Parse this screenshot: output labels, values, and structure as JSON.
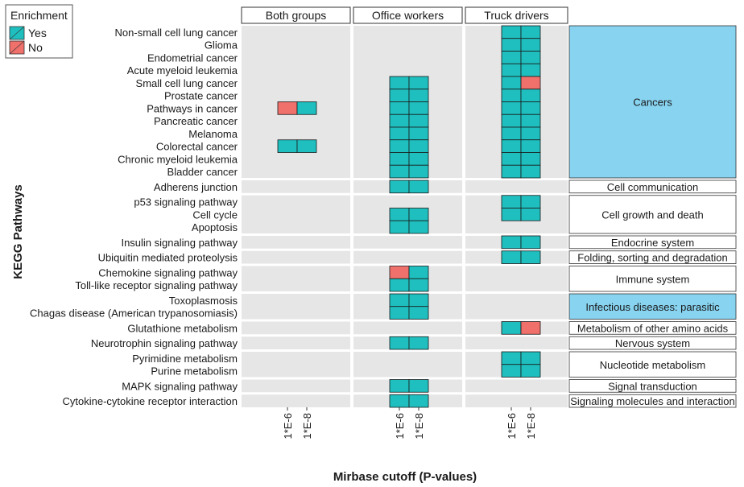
{
  "chart_data": {
    "type": "heatmap",
    "title": "",
    "ylabel": "KEGG Pathways",
    "xlabel": "Mirbase cutoff (P-values)",
    "legend": {
      "title": "Enrichment",
      "placement": "top-left",
      "entries": [
        {
          "label": "Yes",
          "color": "#1fbfbf"
        },
        {
          "label": "No",
          "color": "#f0706b"
        }
      ]
    },
    "panels": [
      "Both groups",
      "Office workers",
      "Truck drivers"
    ],
    "cutoffs": [
      "1*E-6",
      "1*E-8"
    ],
    "pathways": [
      "Non-small cell lung cancer",
      "Glioma",
      "Endometrial cancer",
      "Acute myeloid leukemia",
      "Small cell lung cancer",
      "Prostate cancer",
      "Pathways in cancer",
      "Pancreatic cancer",
      "Melanoma",
      "Colorectal cancer",
      "Chronic myeloid leukemia",
      "Bladder cancer",
      "Adherens junction",
      "p53 signaling pathway",
      "Cell cycle",
      "Apoptosis",
      "Insulin signaling pathway",
      "Ubiquitin mediated proteolysis",
      "Chemokine signaling pathway",
      "Toll-like receptor signaling pathway",
      "Toxoplasmosis",
      "Chagas disease (American trypanosomiasis)",
      "Glutathione metabolism",
      "Neurotrophin signaling pathway",
      "Pyrimidine metabolism",
      "Purine metabolism",
      "MAPK signaling pathway",
      "Cytokine-cytokine receptor interaction"
    ],
    "categories": [
      {
        "label": "Cancers",
        "rows": [
          0,
          11
        ],
        "highlight": true
      },
      {
        "label": "Cell communication",
        "rows": [
          12,
          12
        ],
        "highlight": false
      },
      {
        "label": "Cell growth and death",
        "rows": [
          13,
          15
        ],
        "highlight": false
      },
      {
        "label": "Endocrine system",
        "rows": [
          16,
          16
        ],
        "highlight": false
      },
      {
        "label": "Folding, sorting and degradation",
        "rows": [
          17,
          17
        ],
        "highlight": false
      },
      {
        "label": "Immune system",
        "rows": [
          18,
          19
        ],
        "highlight": false
      },
      {
        "label": "Infectious diseases: parasitic",
        "rows": [
          20,
          21
        ],
        "highlight": true
      },
      {
        "label": "Metabolism of other amino acids",
        "rows": [
          22,
          22
        ],
        "highlight": false
      },
      {
        "label": "Nervous system",
        "rows": [
          23,
          23
        ],
        "highlight": false
      },
      {
        "label": "Nucleotide metabolism",
        "rows": [
          24,
          25
        ],
        "highlight": false
      },
      {
        "label": "Signal transduction",
        "rows": [
          26,
          26
        ],
        "highlight": false
      },
      {
        "label": "Signaling molecules and interaction",
        "rows": [
          27,
          27
        ],
        "highlight": false
      }
    ],
    "highlight_color": "#87d3f0",
    "cells": [
      {
        "panel": 0,
        "row": 6,
        "cutoff": 0,
        "enriched": "No"
      },
      {
        "panel": 0,
        "row": 6,
        "cutoff": 1,
        "enriched": "Yes"
      },
      {
        "panel": 0,
        "row": 9,
        "cutoff": 0,
        "enriched": "Yes"
      },
      {
        "panel": 0,
        "row": 9,
        "cutoff": 1,
        "enriched": "Yes"
      },
      {
        "panel": 1,
        "row": 4,
        "cutoff": 0,
        "enriched": "Yes"
      },
      {
        "panel": 1,
        "row": 4,
        "cutoff": 1,
        "enriched": "Yes"
      },
      {
        "panel": 1,
        "row": 5,
        "cutoff": 0,
        "enriched": "Yes"
      },
      {
        "panel": 1,
        "row": 5,
        "cutoff": 1,
        "enriched": "Yes"
      },
      {
        "panel": 1,
        "row": 6,
        "cutoff": 0,
        "enriched": "Yes"
      },
      {
        "panel": 1,
        "row": 6,
        "cutoff": 1,
        "enriched": "Yes"
      },
      {
        "panel": 1,
        "row": 7,
        "cutoff": 0,
        "enriched": "Yes"
      },
      {
        "panel": 1,
        "row": 7,
        "cutoff": 1,
        "enriched": "Yes"
      },
      {
        "panel": 1,
        "row": 8,
        "cutoff": 0,
        "enriched": "Yes"
      },
      {
        "panel": 1,
        "row": 8,
        "cutoff": 1,
        "enriched": "Yes"
      },
      {
        "panel": 1,
        "row": 9,
        "cutoff": 0,
        "enriched": "Yes"
      },
      {
        "panel": 1,
        "row": 9,
        "cutoff": 1,
        "enriched": "Yes"
      },
      {
        "panel": 1,
        "row": 10,
        "cutoff": 0,
        "enriched": "Yes"
      },
      {
        "panel": 1,
        "row": 10,
        "cutoff": 1,
        "enriched": "Yes"
      },
      {
        "panel": 1,
        "row": 11,
        "cutoff": 0,
        "enriched": "Yes"
      },
      {
        "panel": 1,
        "row": 11,
        "cutoff": 1,
        "enriched": "Yes"
      },
      {
        "panel": 1,
        "row": 12,
        "cutoff": 0,
        "enriched": "Yes"
      },
      {
        "panel": 1,
        "row": 12,
        "cutoff": 1,
        "enriched": "Yes"
      },
      {
        "panel": 1,
        "row": 14,
        "cutoff": 0,
        "enriched": "Yes"
      },
      {
        "panel": 1,
        "row": 14,
        "cutoff": 1,
        "enriched": "Yes"
      },
      {
        "panel": 1,
        "row": 15,
        "cutoff": 0,
        "enriched": "Yes"
      },
      {
        "panel": 1,
        "row": 15,
        "cutoff": 1,
        "enriched": "Yes"
      },
      {
        "panel": 1,
        "row": 18,
        "cutoff": 0,
        "enriched": "No"
      },
      {
        "panel": 1,
        "row": 18,
        "cutoff": 1,
        "enriched": "Yes"
      },
      {
        "panel": 1,
        "row": 19,
        "cutoff": 0,
        "enriched": "Yes"
      },
      {
        "panel": 1,
        "row": 19,
        "cutoff": 1,
        "enriched": "Yes"
      },
      {
        "panel": 1,
        "row": 20,
        "cutoff": 0,
        "enriched": "Yes"
      },
      {
        "panel": 1,
        "row": 20,
        "cutoff": 1,
        "enriched": "Yes"
      },
      {
        "panel": 1,
        "row": 21,
        "cutoff": 0,
        "enriched": "Yes"
      },
      {
        "panel": 1,
        "row": 21,
        "cutoff": 1,
        "enriched": "Yes"
      },
      {
        "panel": 1,
        "row": 23,
        "cutoff": 0,
        "enriched": "Yes"
      },
      {
        "panel": 1,
        "row": 23,
        "cutoff": 1,
        "enriched": "Yes"
      },
      {
        "panel": 1,
        "row": 26,
        "cutoff": 0,
        "enriched": "Yes"
      },
      {
        "panel": 1,
        "row": 26,
        "cutoff": 1,
        "enriched": "Yes"
      },
      {
        "panel": 1,
        "row": 27,
        "cutoff": 0,
        "enriched": "Yes"
      },
      {
        "panel": 1,
        "row": 27,
        "cutoff": 1,
        "enriched": "Yes"
      },
      {
        "panel": 2,
        "row": 0,
        "cutoff": 0,
        "enriched": "Yes"
      },
      {
        "panel": 2,
        "row": 0,
        "cutoff": 1,
        "enriched": "Yes"
      },
      {
        "panel": 2,
        "row": 1,
        "cutoff": 0,
        "enriched": "Yes"
      },
      {
        "panel": 2,
        "row": 1,
        "cutoff": 1,
        "enriched": "Yes"
      },
      {
        "panel": 2,
        "row": 2,
        "cutoff": 0,
        "enriched": "Yes"
      },
      {
        "panel": 2,
        "row": 2,
        "cutoff": 1,
        "enriched": "Yes"
      },
      {
        "panel": 2,
        "row": 3,
        "cutoff": 0,
        "enriched": "Yes"
      },
      {
        "panel": 2,
        "row": 3,
        "cutoff": 1,
        "enriched": "Yes"
      },
      {
        "panel": 2,
        "row": 4,
        "cutoff": 0,
        "enriched": "Yes"
      },
      {
        "panel": 2,
        "row": 4,
        "cutoff": 1,
        "enriched": "No"
      },
      {
        "panel": 2,
        "row": 5,
        "cutoff": 0,
        "enriched": "Yes"
      },
      {
        "panel": 2,
        "row": 5,
        "cutoff": 1,
        "enriched": "Yes"
      },
      {
        "panel": 2,
        "row": 6,
        "cutoff": 0,
        "enriched": "Yes"
      },
      {
        "panel": 2,
        "row": 6,
        "cutoff": 1,
        "enriched": "Yes"
      },
      {
        "panel": 2,
        "row": 7,
        "cutoff": 0,
        "enriched": "Yes"
      },
      {
        "panel": 2,
        "row": 7,
        "cutoff": 1,
        "enriched": "Yes"
      },
      {
        "panel": 2,
        "row": 8,
        "cutoff": 0,
        "enriched": "Yes"
      },
      {
        "panel": 2,
        "row": 8,
        "cutoff": 1,
        "enriched": "Yes"
      },
      {
        "panel": 2,
        "row": 9,
        "cutoff": 0,
        "enriched": "Yes"
      },
      {
        "panel": 2,
        "row": 9,
        "cutoff": 1,
        "enriched": "Yes"
      },
      {
        "panel": 2,
        "row": 10,
        "cutoff": 0,
        "enriched": "Yes"
      },
      {
        "panel": 2,
        "row": 10,
        "cutoff": 1,
        "enriched": "Yes"
      },
      {
        "panel": 2,
        "row": 11,
        "cutoff": 0,
        "enriched": "Yes"
      },
      {
        "panel": 2,
        "row": 11,
        "cutoff": 1,
        "enriched": "Yes"
      },
      {
        "panel": 2,
        "row": 13,
        "cutoff": 0,
        "enriched": "Yes"
      },
      {
        "panel": 2,
        "row": 13,
        "cutoff": 1,
        "enriched": "Yes"
      },
      {
        "panel": 2,
        "row": 14,
        "cutoff": 0,
        "enriched": "Yes"
      },
      {
        "panel": 2,
        "row": 14,
        "cutoff": 1,
        "enriched": "Yes"
      },
      {
        "panel": 2,
        "row": 16,
        "cutoff": 0,
        "enriched": "Yes"
      },
      {
        "panel": 2,
        "row": 16,
        "cutoff": 1,
        "enriched": "Yes"
      },
      {
        "panel": 2,
        "row": 17,
        "cutoff": 0,
        "enriched": "Yes"
      },
      {
        "panel": 2,
        "row": 17,
        "cutoff": 1,
        "enriched": "Yes"
      },
      {
        "panel": 2,
        "row": 22,
        "cutoff": 0,
        "enriched": "Yes"
      },
      {
        "panel": 2,
        "row": 22,
        "cutoff": 1,
        "enriched": "No"
      },
      {
        "panel": 2,
        "row": 24,
        "cutoff": 0,
        "enriched": "Yes"
      },
      {
        "panel": 2,
        "row": 24,
        "cutoff": 1,
        "enriched": "Yes"
      },
      {
        "panel": 2,
        "row": 25,
        "cutoff": 0,
        "enriched": "Yes"
      },
      {
        "panel": 2,
        "row": 25,
        "cutoff": 1,
        "enriched": "Yes"
      }
    ]
  }
}
